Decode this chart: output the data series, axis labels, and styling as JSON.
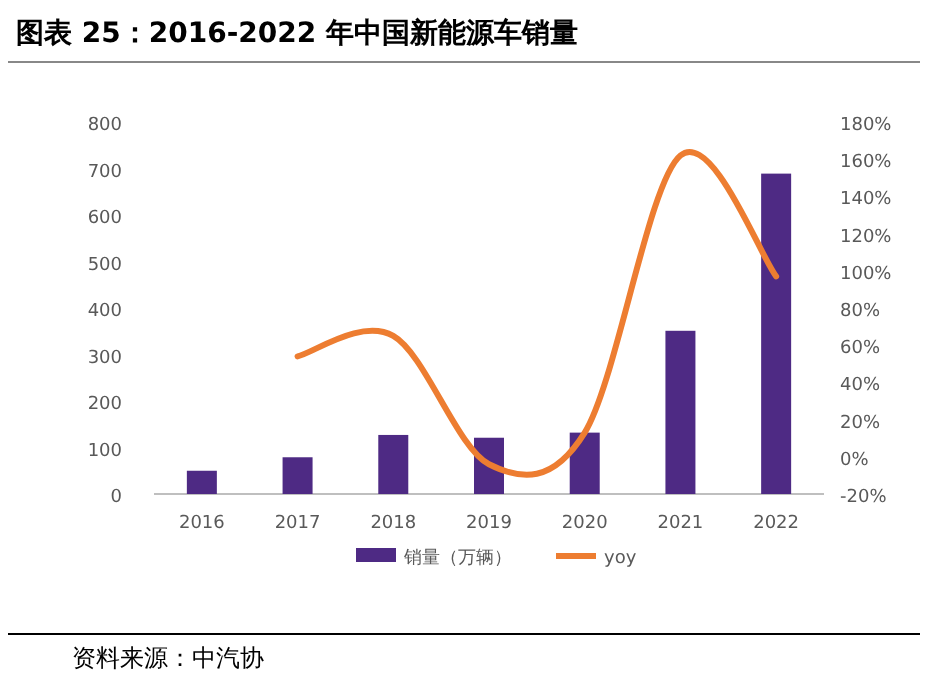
{
  "chart_data": {
    "type": "bar",
    "title": "图表 25：2016-2022 年中国新能源车销量",
    "categories": [
      "2016",
      "2017",
      "2018",
      "2019",
      "2020",
      "2021",
      "2022"
    ],
    "series": [
      {
        "name": "销量（万辆）",
        "color": "#4e2a84",
        "values": [
          50,
          79,
          127,
          121,
          132,
          351,
          689
        ]
      },
      {
        "name": "yoy",
        "type": "line",
        "axis": "y2",
        "color": "#ed7d31",
        "values": [
          null,
          54,
          65,
          -4,
          13,
          162,
          97
        ]
      }
    ],
    "ylim": [
      0,
      800
    ],
    "yticks": [
      0,
      100,
      200,
      300,
      400,
      500,
      600,
      700,
      800
    ],
    "y2lim": [
      -20,
      180
    ],
    "y2ticks": [
      {
        "value": -20,
        "label": "-20%"
      },
      {
        "value": 0,
        "label": "0%"
      },
      {
        "value": 20,
        "label": "20%"
      },
      {
        "value": 40,
        "label": "40%"
      },
      {
        "value": 60,
        "label": "60%"
      },
      {
        "value": 80,
        "label": "80%"
      },
      {
        "value": 100,
        "label": "100%"
      },
      {
        "value": 120,
        "label": "120%"
      },
      {
        "value": 140,
        "label": "140%"
      },
      {
        "value": 160,
        "label": "160%"
      },
      {
        "value": 180,
        "label": "180%"
      }
    ],
    "legend": "bottom",
    "grid": false,
    "marker": "none",
    "line_style": "solid",
    "annotations": [
      "资料来源：中汽协"
    ]
  }
}
